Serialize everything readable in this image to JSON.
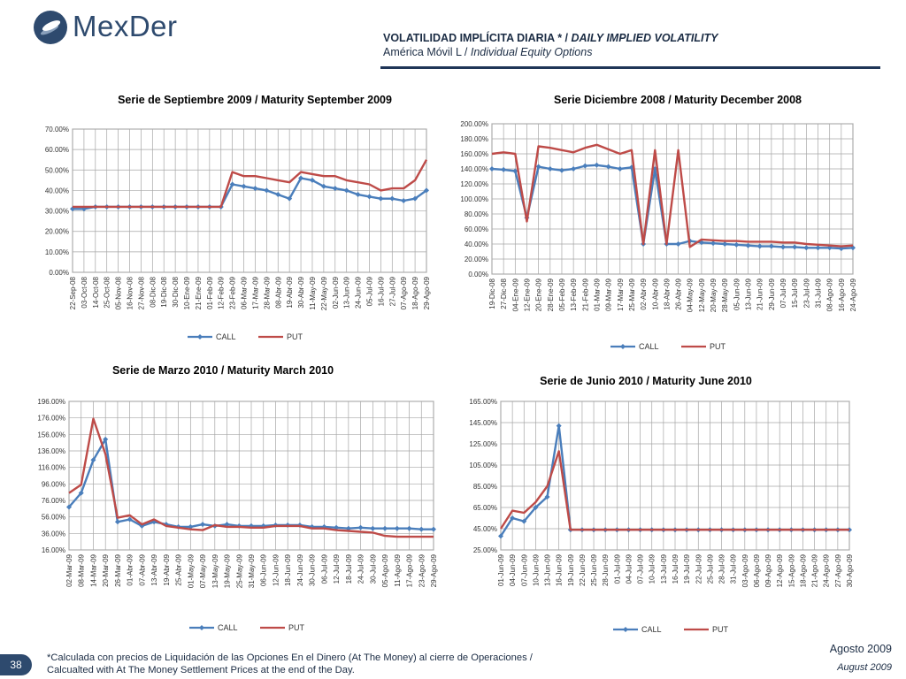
{
  "header": {
    "logo_text": "MexDer",
    "title_es": "VOLATILIDAD IMPLÍCITA DIARIA",
    "title_sep": " * / ",
    "title_en": "DAILY IMPLIED VOLATILITY",
    "subtitle_es": "América Móvil L",
    "subtitle_sep": " / ",
    "subtitle_en": "Individual Equity Options"
  },
  "footer": {
    "page_number": "38",
    "note_line1": "*Calculada con precios de Liquidación de las Opciones En el Dinero (At The Money) al cierre de Operaciones /",
    "note_line2": "Calcualted with At The Money Settlement Prices at the end of the Day.",
    "date_es": "Agosto 2009",
    "date_en": "August 2009"
  },
  "colors": {
    "call": "#4a7ebb",
    "put": "#be4b48",
    "grid": "#a6a6a6",
    "text": "#1b2c44"
  },
  "chart_data": [
    {
      "type": "line",
      "title": "Serie de Septiembre 2009 / Maturity September 2009",
      "ylim": [
        0,
        70
      ],
      "yticks": [
        "0.00%",
        "10.00%",
        "20.00%",
        "30.00%",
        "40.00%",
        "50.00%",
        "60.00%",
        "70.00%"
      ],
      "grid": true,
      "legend": "bottom",
      "categories": [
        "22-Sep-08",
        "03-Oct-08",
        "14-Oct-08",
        "25-Oct-08",
        "05-Nov-08",
        "16-Nov-08",
        "27-Nov-08",
        "08-Dic-08",
        "19-Dic-08",
        "30-Dic-08",
        "10-Ene-09",
        "21-Ene-09",
        "01-Feb-09",
        "12-Feb-09",
        "23-Feb-09",
        "06-Mar-09",
        "17-Mar-09",
        "28-Mar-09",
        "08-Abr-09",
        "19-Abr-09",
        "30-Abr-09",
        "11-May-09",
        "22-May-09",
        "02-Jun-09",
        "13-Jun-09",
        "24-Jun-09",
        "05-Jul-09",
        "16-Jul-09",
        "27-Jul-09",
        "07-Ago-09",
        "18-Ago-09",
        "29-Ago-09"
      ],
      "series": [
        {
          "name": "CALL",
          "values": [
            31,
            31,
            32,
            32,
            32,
            32,
            32,
            32,
            32,
            32,
            32,
            32,
            32,
            32,
            43,
            42,
            41,
            40,
            38,
            36,
            46,
            45,
            42,
            41,
            40,
            38,
            37,
            36,
            36,
            35,
            36,
            40
          ]
        },
        {
          "name": "PUT",
          "values": [
            32,
            32,
            32,
            32,
            32,
            32,
            32,
            32,
            32,
            32,
            32,
            32,
            32,
            32,
            49,
            47,
            47,
            46,
            45,
            44,
            49,
            48,
            47,
            47,
            45,
            44,
            43,
            40,
            41,
            41,
            45,
            55
          ]
        }
      ]
    },
    {
      "type": "line",
      "title": "Serie Diciembre 2008 / Maturity December 2008",
      "ylim": [
        0,
        200
      ],
      "yticks": [
        "0.00%",
        "20.00%",
        "40.00%",
        "60.00%",
        "80.00%",
        "100.00%",
        "120.00%",
        "140.00%",
        "160.00%",
        "180.00%",
        "200.00%"
      ],
      "grid": true,
      "legend": "bottom",
      "categories": [
        "19-Dic-08",
        "27-Dic-08",
        "04-Ene-09",
        "12-Ene-09",
        "20-Ene-09",
        "28-Ene-09",
        "05-Feb-09",
        "13-Feb-09",
        "21-Feb-09",
        "01-Mar-09",
        "09-Mar-09",
        "17-Mar-09",
        "25-Mar-09",
        "02-Abr-09",
        "10-Abr-09",
        "18-Abr-09",
        "26-Abr-09",
        "04-May-09",
        "12-May-09",
        "20-May-09",
        "28-May-09",
        "05-Jun-09",
        "13-Jun-09",
        "21-Jun-09",
        "29-Jun-09",
        "07-Jul-09",
        "15-Jul-09",
        "23-Jul-09",
        "31-Jul-09",
        "08-Ago-09",
        "16-Ago-09",
        "24-Ago-09"
      ],
      "series": [
        {
          "name": "CALL",
          "values": [
            140,
            139,
            137,
            75,
            143,
            140,
            138,
            140,
            144,
            145,
            143,
            140,
            142,
            40,
            140,
            40,
            40,
            44,
            42,
            41,
            40,
            39,
            38,
            37,
            37,
            36,
            36,
            35,
            35,
            35,
            34,
            35
          ]
        },
        {
          "name": "PUT",
          "values": [
            160,
            162,
            160,
            70,
            170,
            168,
            165,
            162,
            168,
            172,
            166,
            160,
            165,
            40,
            165,
            40,
            165,
            36,
            46,
            45,
            44,
            44,
            43,
            43,
            43,
            42,
            42,
            40,
            39,
            38,
            37,
            38
          ]
        }
      ]
    },
    {
      "type": "line",
      "title": "Serie de Marzo 2010 / Maturity March 2010",
      "ylim": [
        16,
        196
      ],
      "yticks": [
        "16.00%",
        "36.00%",
        "56.00%",
        "76.00%",
        "96.00%",
        "116.00%",
        "136.00%",
        "156.00%",
        "176.00%",
        "196.00%"
      ],
      "grid": true,
      "legend": "bottom",
      "categories": [
        "02-Mar-09",
        "08-Mar-09",
        "14-Mar-09",
        "20-Mar-09",
        "26-Mar-09",
        "01-Abr-09",
        "07-Abr-09",
        "13-Abr-09",
        "19-Abr-09",
        "25-Abr-09",
        "01-May-09",
        "07-May-09",
        "13-May-09",
        "19-May-09",
        "25-May-09",
        "31-May-09",
        "06-Jun-09",
        "12-Jun-09",
        "18-Jun-09",
        "24-Jun-09",
        "30-Jun-09",
        "06-Jul-09",
        "12-Jul-09",
        "18-Jul-09",
        "24-Jul-09",
        "30-Jul-09",
        "05-Ago-09",
        "11-Ago-09",
        "17-Ago-09",
        "23-Ago-09",
        "29-Ago-09"
      ],
      "series": [
        {
          "name": "CALL",
          "values": [
            68,
            85,
            125,
            150,
            50,
            53,
            45,
            50,
            47,
            44,
            44,
            47,
            45,
            47,
            45,
            45,
            45,
            46,
            46,
            46,
            44,
            44,
            43,
            42,
            43,
            42,
            42,
            42,
            42,
            41,
            41
          ]
        },
        {
          "name": "PUT",
          "values": [
            85,
            95,
            175,
            132,
            55,
            58,
            47,
            53,
            45,
            43,
            41,
            40,
            46,
            44,
            44,
            43,
            43,
            45,
            45,
            45,
            42,
            42,
            40,
            39,
            38,
            37,
            33,
            32,
            32,
            32,
            32
          ]
        }
      ]
    },
    {
      "type": "line",
      "title": "Serie de Junio 2010 / Maturity June 2010",
      "ylim": [
        25,
        165
      ],
      "yticks": [
        "25.00%",
        "45.00%",
        "65.00%",
        "85.00%",
        "105.00%",
        "125.00%",
        "145.00%",
        "165.00%"
      ],
      "grid": true,
      "legend": "bottom",
      "categories": [
        "01-Jun-09",
        "04-Jun-09",
        "07-Jun-09",
        "10-Jun-09",
        "13-Jun-09",
        "16-Jun-09",
        "19-Jun-09",
        "22-Jun-09",
        "25-Jun-09",
        "28-Jun-09",
        "01-Jul-09",
        "04-Jul-09",
        "07-Jul-09",
        "10-Jul-09",
        "13-Jul-09",
        "16-Jul-09",
        "19-Jul-09",
        "22-Jul-09",
        "25-Jul-09",
        "28-Jul-09",
        "31-Jul-09",
        "03-Ago-09",
        "06-Ago-09",
        "09-Ago-09",
        "12-Ago-09",
        "15-Ago-09",
        "18-Ago-09",
        "21-Ago-09",
        "24-Ago-09",
        "27-Ago-09",
        "30-Ago-09"
      ],
      "series": [
        {
          "name": "CALL",
          "values": [
            38,
            55,
            52,
            65,
            75,
            142,
            44,
            44,
            44,
            44,
            44,
            44,
            44,
            44,
            44,
            44,
            44,
            44,
            44,
            44,
            44,
            44,
            44,
            44,
            44,
            44,
            44,
            44,
            44,
            44,
            44
          ]
        },
        {
          "name": "PUT",
          "values": [
            45,
            62,
            60,
            70,
            85,
            118,
            44,
            44,
            44,
            44,
            44,
            44,
            44,
            44,
            44,
            44,
            44,
            44,
            44,
            44,
            44,
            44,
            44,
            44,
            44,
            44,
            44,
            44,
            44,
            44,
            44
          ]
        }
      ]
    }
  ]
}
